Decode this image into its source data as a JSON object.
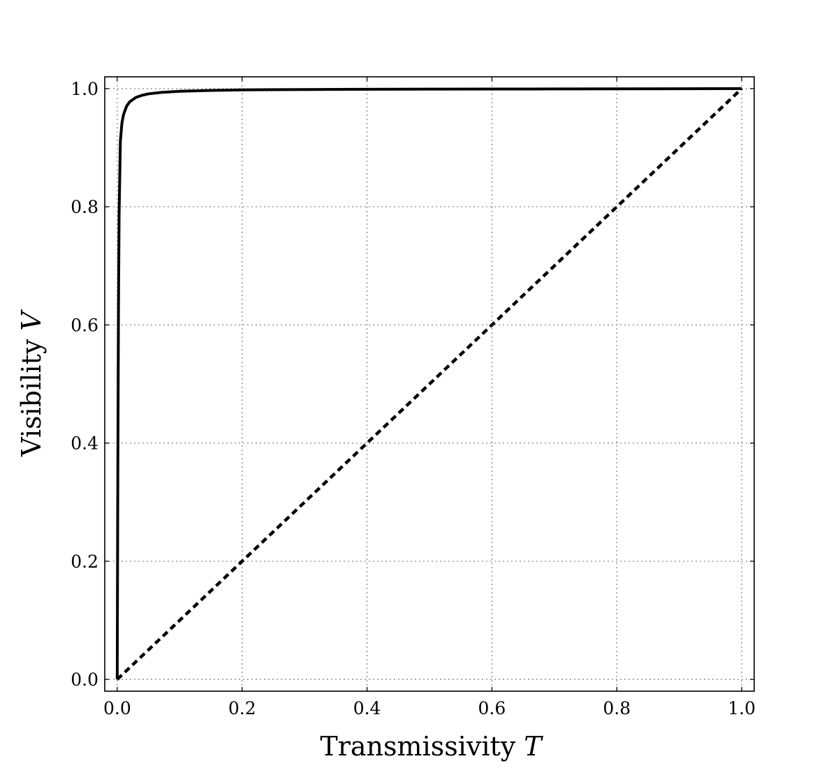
{
  "chart_data": {
    "type": "line",
    "xlabel": {
      "text": "Transmissivity",
      "var": "T"
    },
    "ylabel": {
      "text": "Visibility",
      "var": "V"
    },
    "xlim": [
      -0.02,
      1.02
    ],
    "ylim": [
      -0.02,
      1.02
    ],
    "xticks": [
      {
        "value": 0.0,
        "label": "0.0"
      },
      {
        "value": 0.2,
        "label": "0.2"
      },
      {
        "value": 0.4,
        "label": "0.4"
      },
      {
        "value": 0.6,
        "label": "0.6"
      },
      {
        "value": 0.8,
        "label": "0.8"
      },
      {
        "value": 1.0,
        "label": "1.0"
      }
    ],
    "yticks": [
      {
        "value": 0.0,
        "label": "0.0"
      },
      {
        "value": 0.2,
        "label": "0.2"
      },
      {
        "value": 0.4,
        "label": "0.4"
      },
      {
        "value": 0.6,
        "label": "0.6"
      },
      {
        "value": 0.8,
        "label": "0.8"
      },
      {
        "value": 1.0,
        "label": "1.0"
      }
    ],
    "grid": true,
    "series": [
      {
        "style": "solid",
        "color": "#000000",
        "x": [
          0.0,
          0.0001,
          0.0002,
          0.0005,
          0.001,
          0.002,
          0.003,
          0.005,
          0.0075,
          0.01,
          0.015,
          0.02,
          0.03,
          0.04,
          0.05,
          0.07,
          0.1,
          0.15,
          0.2,
          0.3,
          0.4,
          0.5,
          0.6,
          0.7,
          0.8,
          0.9,
          1.0
        ],
        "y": [
          0.0,
          0.0396,
          0.0792,
          0.1952,
          0.3713,
          0.6326,
          0.7869,
          0.911,
          0.9418,
          0.9558,
          0.9703,
          0.9777,
          0.9851,
          0.9888,
          0.9911,
          0.9936,
          0.9955,
          0.997,
          0.9978,
          0.9985,
          0.9989,
          0.9991,
          0.9993,
          0.9994,
          0.9996,
          0.9998,
          1.0
        ]
      },
      {
        "style": "dashed",
        "color": "#000000",
        "x": [
          0.0,
          1.0
        ],
        "y": [
          0.0,
          1.0
        ]
      }
    ]
  }
}
